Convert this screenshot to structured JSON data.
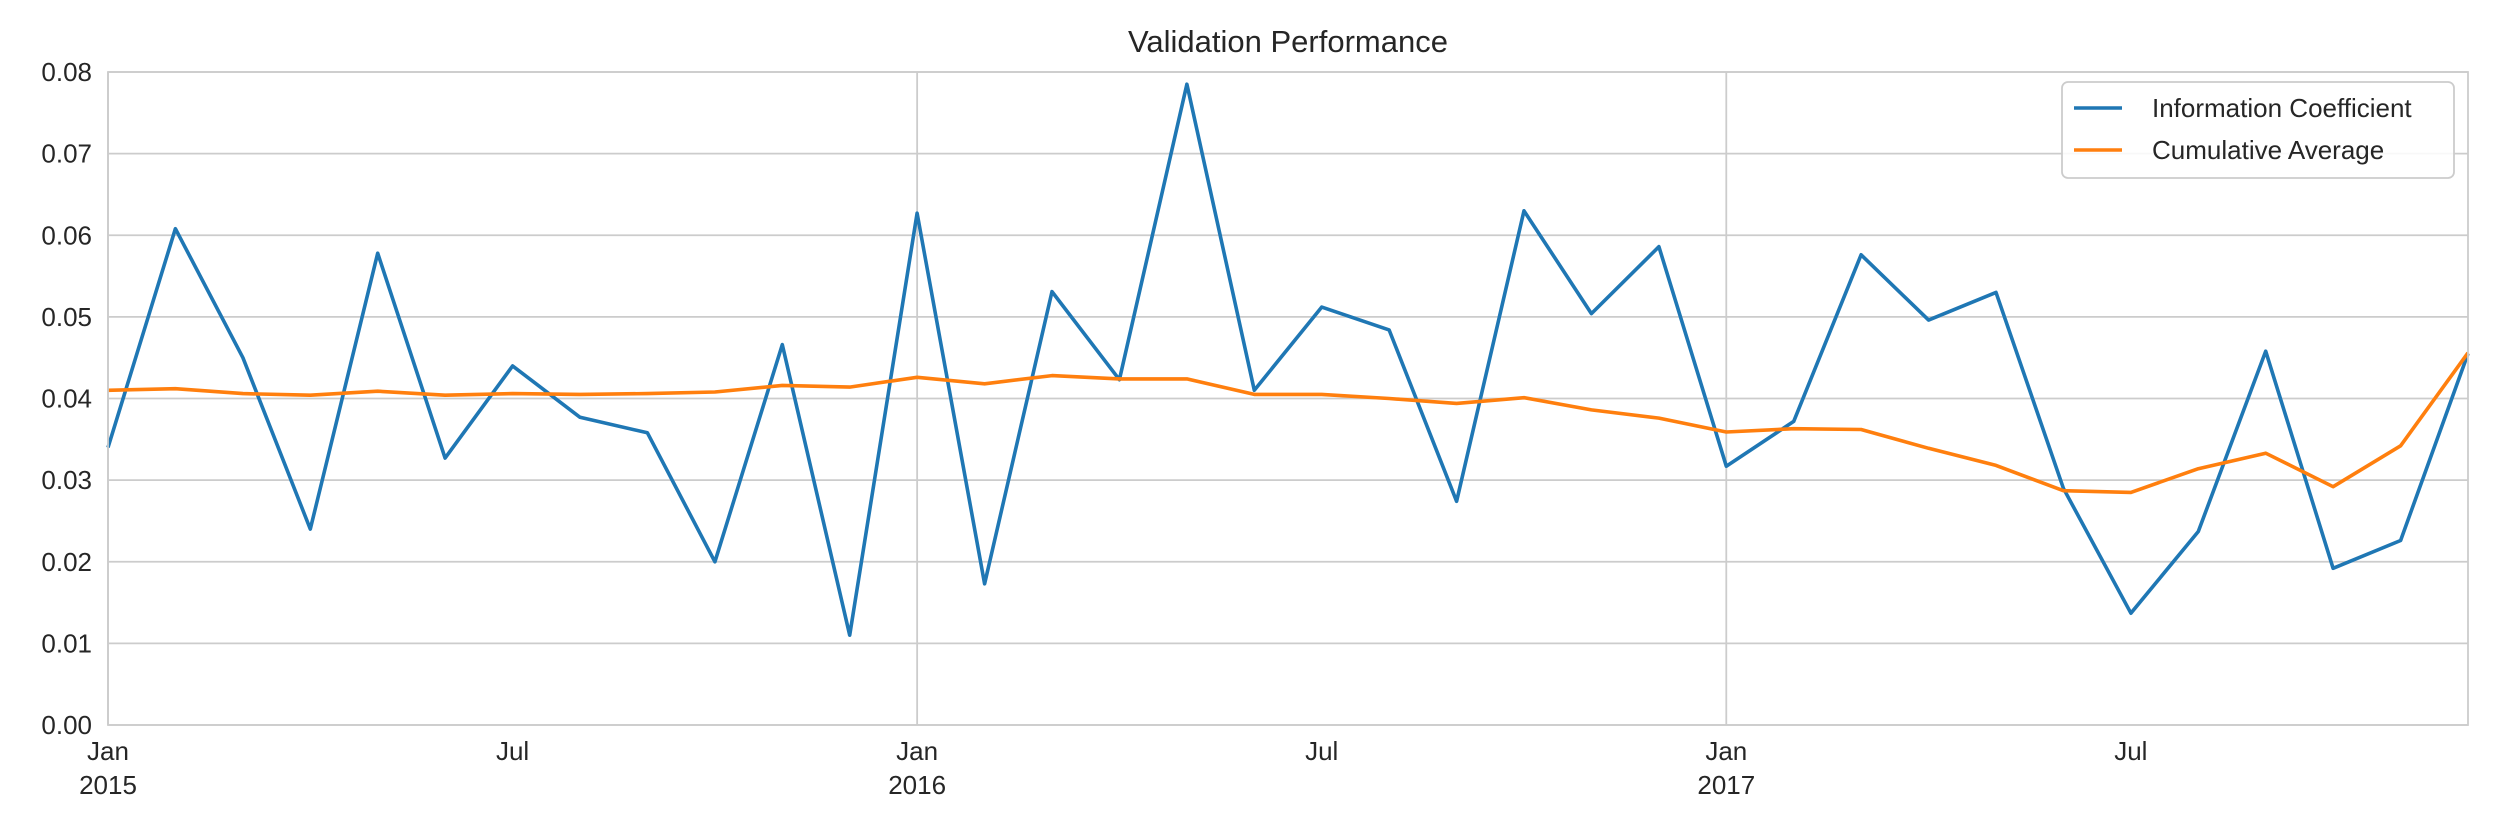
{
  "chart_data": {
    "type": "line",
    "title": "Validation Performance",
    "xlabel": "",
    "ylabel": "",
    "ylim": [
      0.0,
      0.08
    ],
    "yticks": [
      "0.00",
      "0.01",
      "0.02",
      "0.03",
      "0.04",
      "0.05",
      "0.06",
      "0.07",
      "0.08"
    ],
    "xlim": [
      "2015-01",
      "2017-12"
    ],
    "xticks": [
      {
        "date": "2015-01",
        "line1": "Jan",
        "line2": "2015"
      },
      {
        "date": "2015-07",
        "line1": "Jul",
        "line2": ""
      },
      {
        "date": "2016-01",
        "line1": "Jan",
        "line2": "2016"
      },
      {
        "date": "2016-07",
        "line1": "Jul",
        "line2": ""
      },
      {
        "date": "2017-01",
        "line1": "Jan",
        "line2": "2017"
      },
      {
        "date": "2017-07",
        "line1": "Jul",
        "line2": ""
      }
    ],
    "grid": true,
    "legend_position": "top-right",
    "x": [
      "2015-01",
      "2015-02",
      "2015-03",
      "2015-04",
      "2015-05",
      "2015-06",
      "2015-07",
      "2015-08",
      "2015-09",
      "2015-10",
      "2015-11",
      "2015-12",
      "2016-01",
      "2016-02",
      "2016-03",
      "2016-04",
      "2016-05",
      "2016-06",
      "2016-07",
      "2016-08",
      "2016-09",
      "2016-10",
      "2016-11",
      "2016-12",
      "2017-01",
      "2017-02",
      "2017-03",
      "2017-04",
      "2017-05",
      "2017-06",
      "2017-07",
      "2017-08",
      "2017-09",
      "2017-10",
      "2017-11",
      "2017-12"
    ],
    "series": [
      {
        "name": "Information Coefficient",
        "color": "#1f77b4",
        "values": [
          0.034,
          0.0608,
          0.045,
          0.024,
          0.0578,
          0.0327,
          0.044,
          0.0377,
          0.0358,
          0.02,
          0.0466,
          0.011,
          0.0627,
          0.0173,
          0.0531,
          0.0423,
          0.0785,
          0.041,
          0.0512,
          0.0484,
          0.0274,
          0.063,
          0.0504,
          0.0586,
          0.0317,
          0.0372,
          0.0576,
          0.0496,
          0.053,
          0.029,
          0.0137,
          0.0237,
          0.0458,
          0.0192,
          0.0226,
          0.0455
        ]
      },
      {
        "name": "Cumulative Average",
        "color": "#ff7f0e",
        "values": [
          0.041,
          0.0412,
          0.0406,
          0.0404,
          0.0409,
          0.0404,
          0.0406,
          0.0405,
          0.0406,
          0.0408,
          0.0416,
          0.0414,
          0.0426,
          0.0418,
          0.0428,
          0.0424,
          0.0424,
          0.0405,
          0.0405,
          0.04,
          0.0394,
          0.0401,
          0.0386,
          0.0376,
          0.0359,
          0.0363,
          0.0362,
          0.0339,
          0.0318,
          0.0287,
          0.0285,
          0.0314,
          0.0333,
          0.0292,
          0.0342,
          0.0456
        ]
      }
    ]
  }
}
